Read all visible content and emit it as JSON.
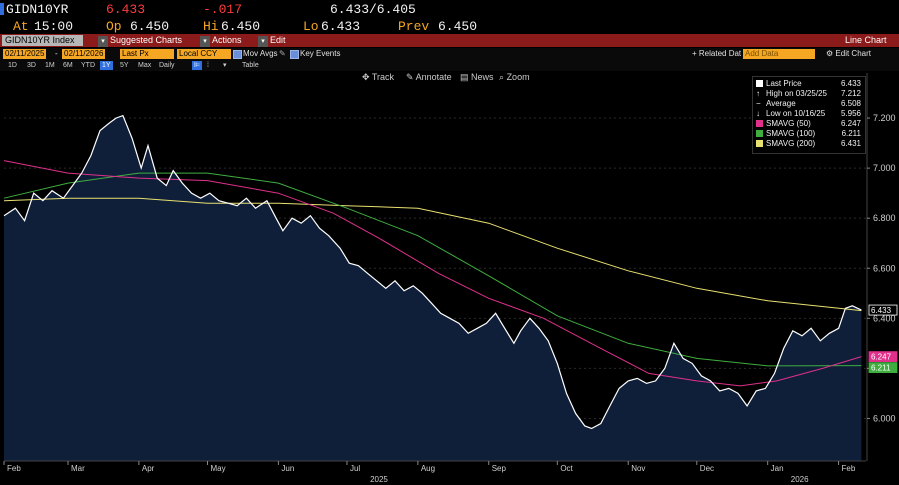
{
  "header": {
    "ticker": "GIDN10YR",
    "last": "6.433",
    "change": "-.017",
    "bid_ask": "6.433/6.405",
    "at_label": "At",
    "time": "15:00",
    "op_label": "Op",
    "open": "6.450",
    "hi_label": "Hi",
    "high": "6.450",
    "lo_label": "Lo",
    "low": "6.433",
    "prev_label": "Prev",
    "prev": "6.450"
  },
  "toolbar": {
    "security": "GIDN10YR Index",
    "suggested": "Suggested Charts",
    "actions": "Actions",
    "edit": "Edit",
    "chart_type": "Line Chart",
    "start_date": "02/11/2025",
    "end_date": "02/11/2026",
    "field": "Last Px",
    "currency": "Local CCY",
    "mov_avgs": "Mov Avgs",
    "key_events": "Key Events",
    "related": "+ Related Dat",
    "add_data_placeholder": "Add Data",
    "edit_chart": "Edit Chart",
    "periods": [
      "1D",
      "3D",
      "1M",
      "6M",
      "YTD",
      "1Y",
      "5Y",
      "Max"
    ],
    "selected_period": "1Y",
    "frequency": "Daily",
    "table": "Table",
    "track": "Track",
    "annotate": "Annotate",
    "news": "News",
    "zoom": "Zoom"
  },
  "legend": {
    "last_price_label": "Last Price",
    "last_price": "6.433",
    "high_label": "High on 03/25/25",
    "high": "7.212",
    "average_label": "Average",
    "average": "6.508",
    "low_label": "Low on 10/16/25",
    "low": "5.956",
    "sma50_label": "SMAVG (50)",
    "sma50": "6.247",
    "sma100_label": "SMAVG (100)",
    "sma100": "6.211",
    "sma200_label": "SMAVG (200)",
    "sma200": "6.431"
  },
  "colors": {
    "price": "#ffffff",
    "area": "#0f1f3a",
    "sma50": "#e0308c",
    "sma100": "#3fae3f",
    "sma200": "#e8e070",
    "accent": "#f5a623",
    "bar": "#8b1a1a"
  },
  "chart_data": {
    "type": "line",
    "title": "",
    "xlabel": "",
    "ylabel": "",
    "ylim": [
      5.83,
      7.38
    ],
    "x_range": [
      "2025-02-01",
      "2026-02-13"
    ],
    "y_ticks": [
      6.0,
      6.2,
      6.4,
      6.6,
      6.8,
      7.0,
      7.2
    ],
    "y_tick_labels": [
      "6.000",
      "6.200",
      "6.400",
      "6.600",
      "6.800",
      "7.000",
      "7.200"
    ],
    "month_labels": [
      {
        "date": "2025-02-01",
        "label": "Feb"
      },
      {
        "date": "2025-03-01",
        "label": "Mar"
      },
      {
        "date": "2025-04-01",
        "label": "Apr"
      },
      {
        "date": "2025-05-01",
        "label": "May"
      },
      {
        "date": "2025-06-01",
        "label": "Jun"
      },
      {
        "date": "2025-07-01",
        "label": "Jul"
      },
      {
        "date": "2025-08-01",
        "label": "Aug"
      },
      {
        "date": "2025-09-01",
        "label": "Sep"
      },
      {
        "date": "2025-10-01",
        "label": "Oct"
      },
      {
        "date": "2025-11-01",
        "label": "Nov"
      },
      {
        "date": "2025-12-01",
        "label": "Dec"
      },
      {
        "date": "2026-01-01",
        "label": "Jan"
      },
      {
        "date": "2026-02-01",
        "label": "Feb"
      }
    ],
    "year_labels": [
      {
        "date": "2025-07-15",
        "label": "2025"
      },
      {
        "date": "2026-01-15",
        "label": "2026"
      }
    ],
    "price_tags": [
      {
        "series": "Last Price",
        "value": "6.433"
      },
      {
        "series": "SMAVG (50)",
        "value": "6.247"
      },
      {
        "series": "SMAVG (100)",
        "value": "6.211"
      }
    ],
    "series": [
      {
        "name": "Last Price",
        "values": [
          [
            "2025-02-01",
            6.81
          ],
          [
            "2025-02-06",
            6.84
          ],
          [
            "2025-02-10",
            6.79
          ],
          [
            "2025-02-14",
            6.9
          ],
          [
            "2025-02-18",
            6.87
          ],
          [
            "2025-02-22",
            6.91
          ],
          [
            "2025-02-27",
            6.88
          ],
          [
            "2025-03-03",
            6.93
          ],
          [
            "2025-03-07",
            6.98
          ],
          [
            "2025-03-11",
            7.05
          ],
          [
            "2025-03-15",
            7.15
          ],
          [
            "2025-03-19",
            7.18
          ],
          [
            "2025-03-22",
            7.2
          ],
          [
            "2025-03-25",
            7.21
          ],
          [
            "2025-03-29",
            7.12
          ],
          [
            "2025-04-02",
            7.0
          ],
          [
            "2025-04-05",
            7.09
          ],
          [
            "2025-04-09",
            6.96
          ],
          [
            "2025-04-13",
            6.93
          ],
          [
            "2025-04-16",
            6.99
          ],
          [
            "2025-04-20",
            6.94
          ],
          [
            "2025-04-24",
            6.9
          ],
          [
            "2025-04-28",
            6.88
          ],
          [
            "2025-05-02",
            6.9
          ],
          [
            "2025-05-06",
            6.87
          ],
          [
            "2025-05-10",
            6.86
          ],
          [
            "2025-05-14",
            6.85
          ],
          [
            "2025-05-18",
            6.88
          ],
          [
            "2025-05-22",
            6.84
          ],
          [
            "2025-05-27",
            6.87
          ],
          [
            "2025-05-31",
            6.8
          ],
          [
            "2025-06-03",
            6.75
          ],
          [
            "2025-06-07",
            6.8
          ],
          [
            "2025-06-11",
            6.78
          ],
          [
            "2025-06-15",
            6.81
          ],
          [
            "2025-06-19",
            6.76
          ],
          [
            "2025-06-23",
            6.73
          ],
          [
            "2025-06-28",
            6.68
          ],
          [
            "2025-07-02",
            6.62
          ],
          [
            "2025-07-06",
            6.61
          ],
          [
            "2025-07-10",
            6.58
          ],
          [
            "2025-07-14",
            6.55
          ],
          [
            "2025-07-18",
            6.52
          ],
          [
            "2025-07-22",
            6.55
          ],
          [
            "2025-07-26",
            6.51
          ],
          [
            "2025-07-30",
            6.53
          ],
          [
            "2025-08-03",
            6.5
          ],
          [
            "2025-08-07",
            6.46
          ],
          [
            "2025-08-11",
            6.42
          ],
          [
            "2025-08-15",
            6.4
          ],
          [
            "2025-08-19",
            6.38
          ],
          [
            "2025-08-23",
            6.34
          ],
          [
            "2025-08-27",
            6.36
          ],
          [
            "2025-08-31",
            6.38
          ],
          [
            "2025-09-04",
            6.42
          ],
          [
            "2025-09-08",
            6.36
          ],
          [
            "2025-09-12",
            6.3
          ],
          [
            "2025-09-15",
            6.35
          ],
          [
            "2025-09-19",
            6.4
          ],
          [
            "2025-09-23",
            6.36
          ],
          [
            "2025-09-27",
            6.31
          ],
          [
            "2025-10-01",
            6.22
          ],
          [
            "2025-10-05",
            6.1
          ],
          [
            "2025-10-09",
            6.02
          ],
          [
            "2025-10-13",
            5.97
          ],
          [
            "2025-10-16",
            5.96
          ],
          [
            "2025-10-20",
            5.98
          ],
          [
            "2025-10-24",
            6.05
          ],
          [
            "2025-10-28",
            6.12
          ],
          [
            "2025-11-01",
            6.15
          ],
          [
            "2025-11-05",
            6.16
          ],
          [
            "2025-11-09",
            6.14
          ],
          [
            "2025-11-13",
            6.15
          ],
          [
            "2025-11-17",
            6.2
          ],
          [
            "2025-11-21",
            6.3
          ],
          [
            "2025-11-25",
            6.24
          ],
          [
            "2025-11-29",
            6.22
          ],
          [
            "2025-12-03",
            6.17
          ],
          [
            "2025-12-07",
            6.15
          ],
          [
            "2025-12-11",
            6.11
          ],
          [
            "2025-12-15",
            6.12
          ],
          [
            "2025-12-19",
            6.1
          ],
          [
            "2025-12-23",
            6.05
          ],
          [
            "2025-12-27",
            6.11
          ],
          [
            "2025-12-31",
            6.12
          ],
          [
            "2026-01-04",
            6.18
          ],
          [
            "2026-01-08",
            6.28
          ],
          [
            "2026-01-12",
            6.35
          ],
          [
            "2026-01-16",
            6.33
          ],
          [
            "2026-01-20",
            6.36
          ],
          [
            "2026-01-24",
            6.31
          ],
          [
            "2026-01-28",
            6.34
          ],
          [
            "2026-02-01",
            6.36
          ],
          [
            "2026-02-04",
            6.44
          ],
          [
            "2026-02-07",
            6.45
          ],
          [
            "2026-02-11",
            6.433
          ]
        ]
      },
      {
        "name": "SMAVG (50)",
        "values": [
          [
            "2025-02-01",
            7.03
          ],
          [
            "2025-03-01",
            6.98
          ],
          [
            "2025-04-01",
            6.96
          ],
          [
            "2025-05-01",
            6.95
          ],
          [
            "2025-06-01",
            6.9
          ],
          [
            "2025-06-25",
            6.82
          ],
          [
            "2025-07-15",
            6.72
          ],
          [
            "2025-08-10",
            6.58
          ],
          [
            "2025-09-01",
            6.48
          ],
          [
            "2025-09-25",
            6.4
          ],
          [
            "2025-10-20",
            6.28
          ],
          [
            "2025-11-10",
            6.18
          ],
          [
            "2025-12-01",
            6.15
          ],
          [
            "2025-12-20",
            6.13
          ],
          [
            "2026-01-05",
            6.15
          ],
          [
            "2026-01-25",
            6.2
          ],
          [
            "2026-02-11",
            6.247
          ]
        ]
      },
      {
        "name": "SMAVG (100)",
        "values": [
          [
            "2025-02-01",
            6.88
          ],
          [
            "2025-03-01",
            6.94
          ],
          [
            "2025-04-01",
            6.98
          ],
          [
            "2025-05-01",
            6.98
          ],
          [
            "2025-06-01",
            6.94
          ],
          [
            "2025-07-01",
            6.84
          ],
          [
            "2025-08-01",
            6.73
          ],
          [
            "2025-09-01",
            6.57
          ],
          [
            "2025-10-01",
            6.41
          ],
          [
            "2025-11-01",
            6.3
          ],
          [
            "2025-12-01",
            6.24
          ],
          [
            "2026-01-01",
            6.21
          ],
          [
            "2026-02-11",
            6.211
          ]
        ]
      },
      {
        "name": "SMAVG (200)",
        "values": [
          [
            "2025-02-01",
            6.87
          ],
          [
            "2025-03-01",
            6.88
          ],
          [
            "2025-04-01",
            6.88
          ],
          [
            "2025-05-01",
            6.86
          ],
          [
            "2025-06-01",
            6.86
          ],
          [
            "2025-07-01",
            6.85
          ],
          [
            "2025-08-01",
            6.84
          ],
          [
            "2025-09-01",
            6.78
          ],
          [
            "2025-10-01",
            6.68
          ],
          [
            "2025-11-01",
            6.59
          ],
          [
            "2025-12-01",
            6.52
          ],
          [
            "2026-01-01",
            6.47
          ],
          [
            "2026-02-11",
            6.431
          ]
        ]
      }
    ]
  }
}
